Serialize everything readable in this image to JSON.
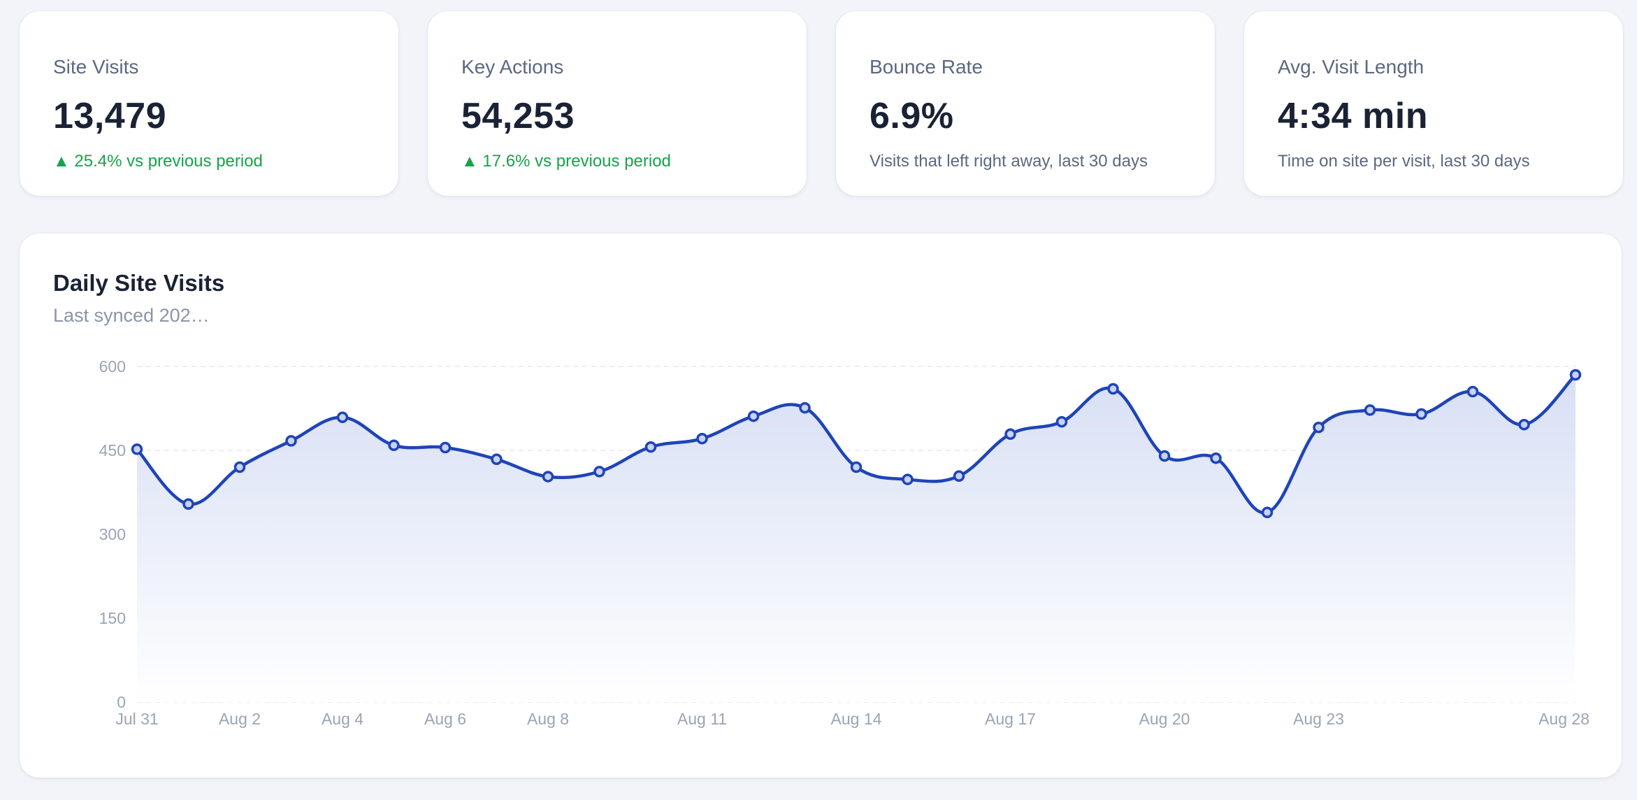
{
  "kpis": [
    {
      "label": "Site Visits",
      "value": "13,479",
      "note": "▲ 25.4% vs previous period",
      "trend": "up"
    },
    {
      "label": "Key Actions",
      "value": "54,253",
      "note": "▲ 17.6% vs previous period",
      "trend": "up"
    },
    {
      "label": "Bounce Rate",
      "value": "6.9%",
      "note": "Visits that left right away, last 30 days",
      "trend": "neutral"
    },
    {
      "label": "Avg. Visit Length",
      "value": "4:34 min",
      "note": "Time on site per visit, last 30 days",
      "trend": "neutral"
    }
  ],
  "chart": {
    "title": "Daily Site Visits",
    "subtitle": "Last synced 202…"
  },
  "colors": {
    "line": "#1f44b8",
    "area_top": "#d6def4",
    "up": "#17a34a",
    "grid": "#e6e9f0",
    "tick": "#9aa4b6"
  },
  "chart_data": {
    "type": "area",
    "title": "Daily Site Visits",
    "xlabel": "",
    "ylabel": "",
    "ylim": [
      0,
      600
    ],
    "yticks": [
      0,
      150,
      300,
      450,
      600
    ],
    "x": [
      "Jul 31",
      "Aug 1",
      "Aug 2",
      "Aug 3",
      "Aug 4",
      "Aug 5",
      "Aug 6",
      "Aug 7",
      "Aug 8",
      "Aug 9",
      "Aug 10",
      "Aug 11",
      "Aug 12",
      "Aug 13",
      "Aug 14",
      "Aug 15",
      "Aug 16",
      "Aug 17",
      "Aug 18",
      "Aug 19",
      "Aug 20",
      "Aug 21",
      "Aug 22",
      "Aug 23",
      "Aug 24",
      "Aug 25",
      "Aug 26",
      "Aug 27",
      "Aug 28"
    ],
    "xtick_labels": [
      "Jul 31",
      "Aug 2",
      "Aug 4",
      "Aug 6",
      "Aug 8",
      "Aug 11",
      "Aug 14",
      "Aug 17",
      "Aug 20",
      "Aug 23",
      "Aug 28"
    ],
    "series": [
      {
        "values": [
          452,
          354,
          420,
          467,
          509,
          459,
          455,
          434,
          403,
          412,
          456,
          471,
          511,
          526,
          420,
          398,
          404,
          479,
          501,
          560,
          440,
          436,
          339,
          491,
          522,
          515,
          555,
          496,
          585
        ]
      }
    ],
    "grid": true,
    "legend": "none"
  }
}
